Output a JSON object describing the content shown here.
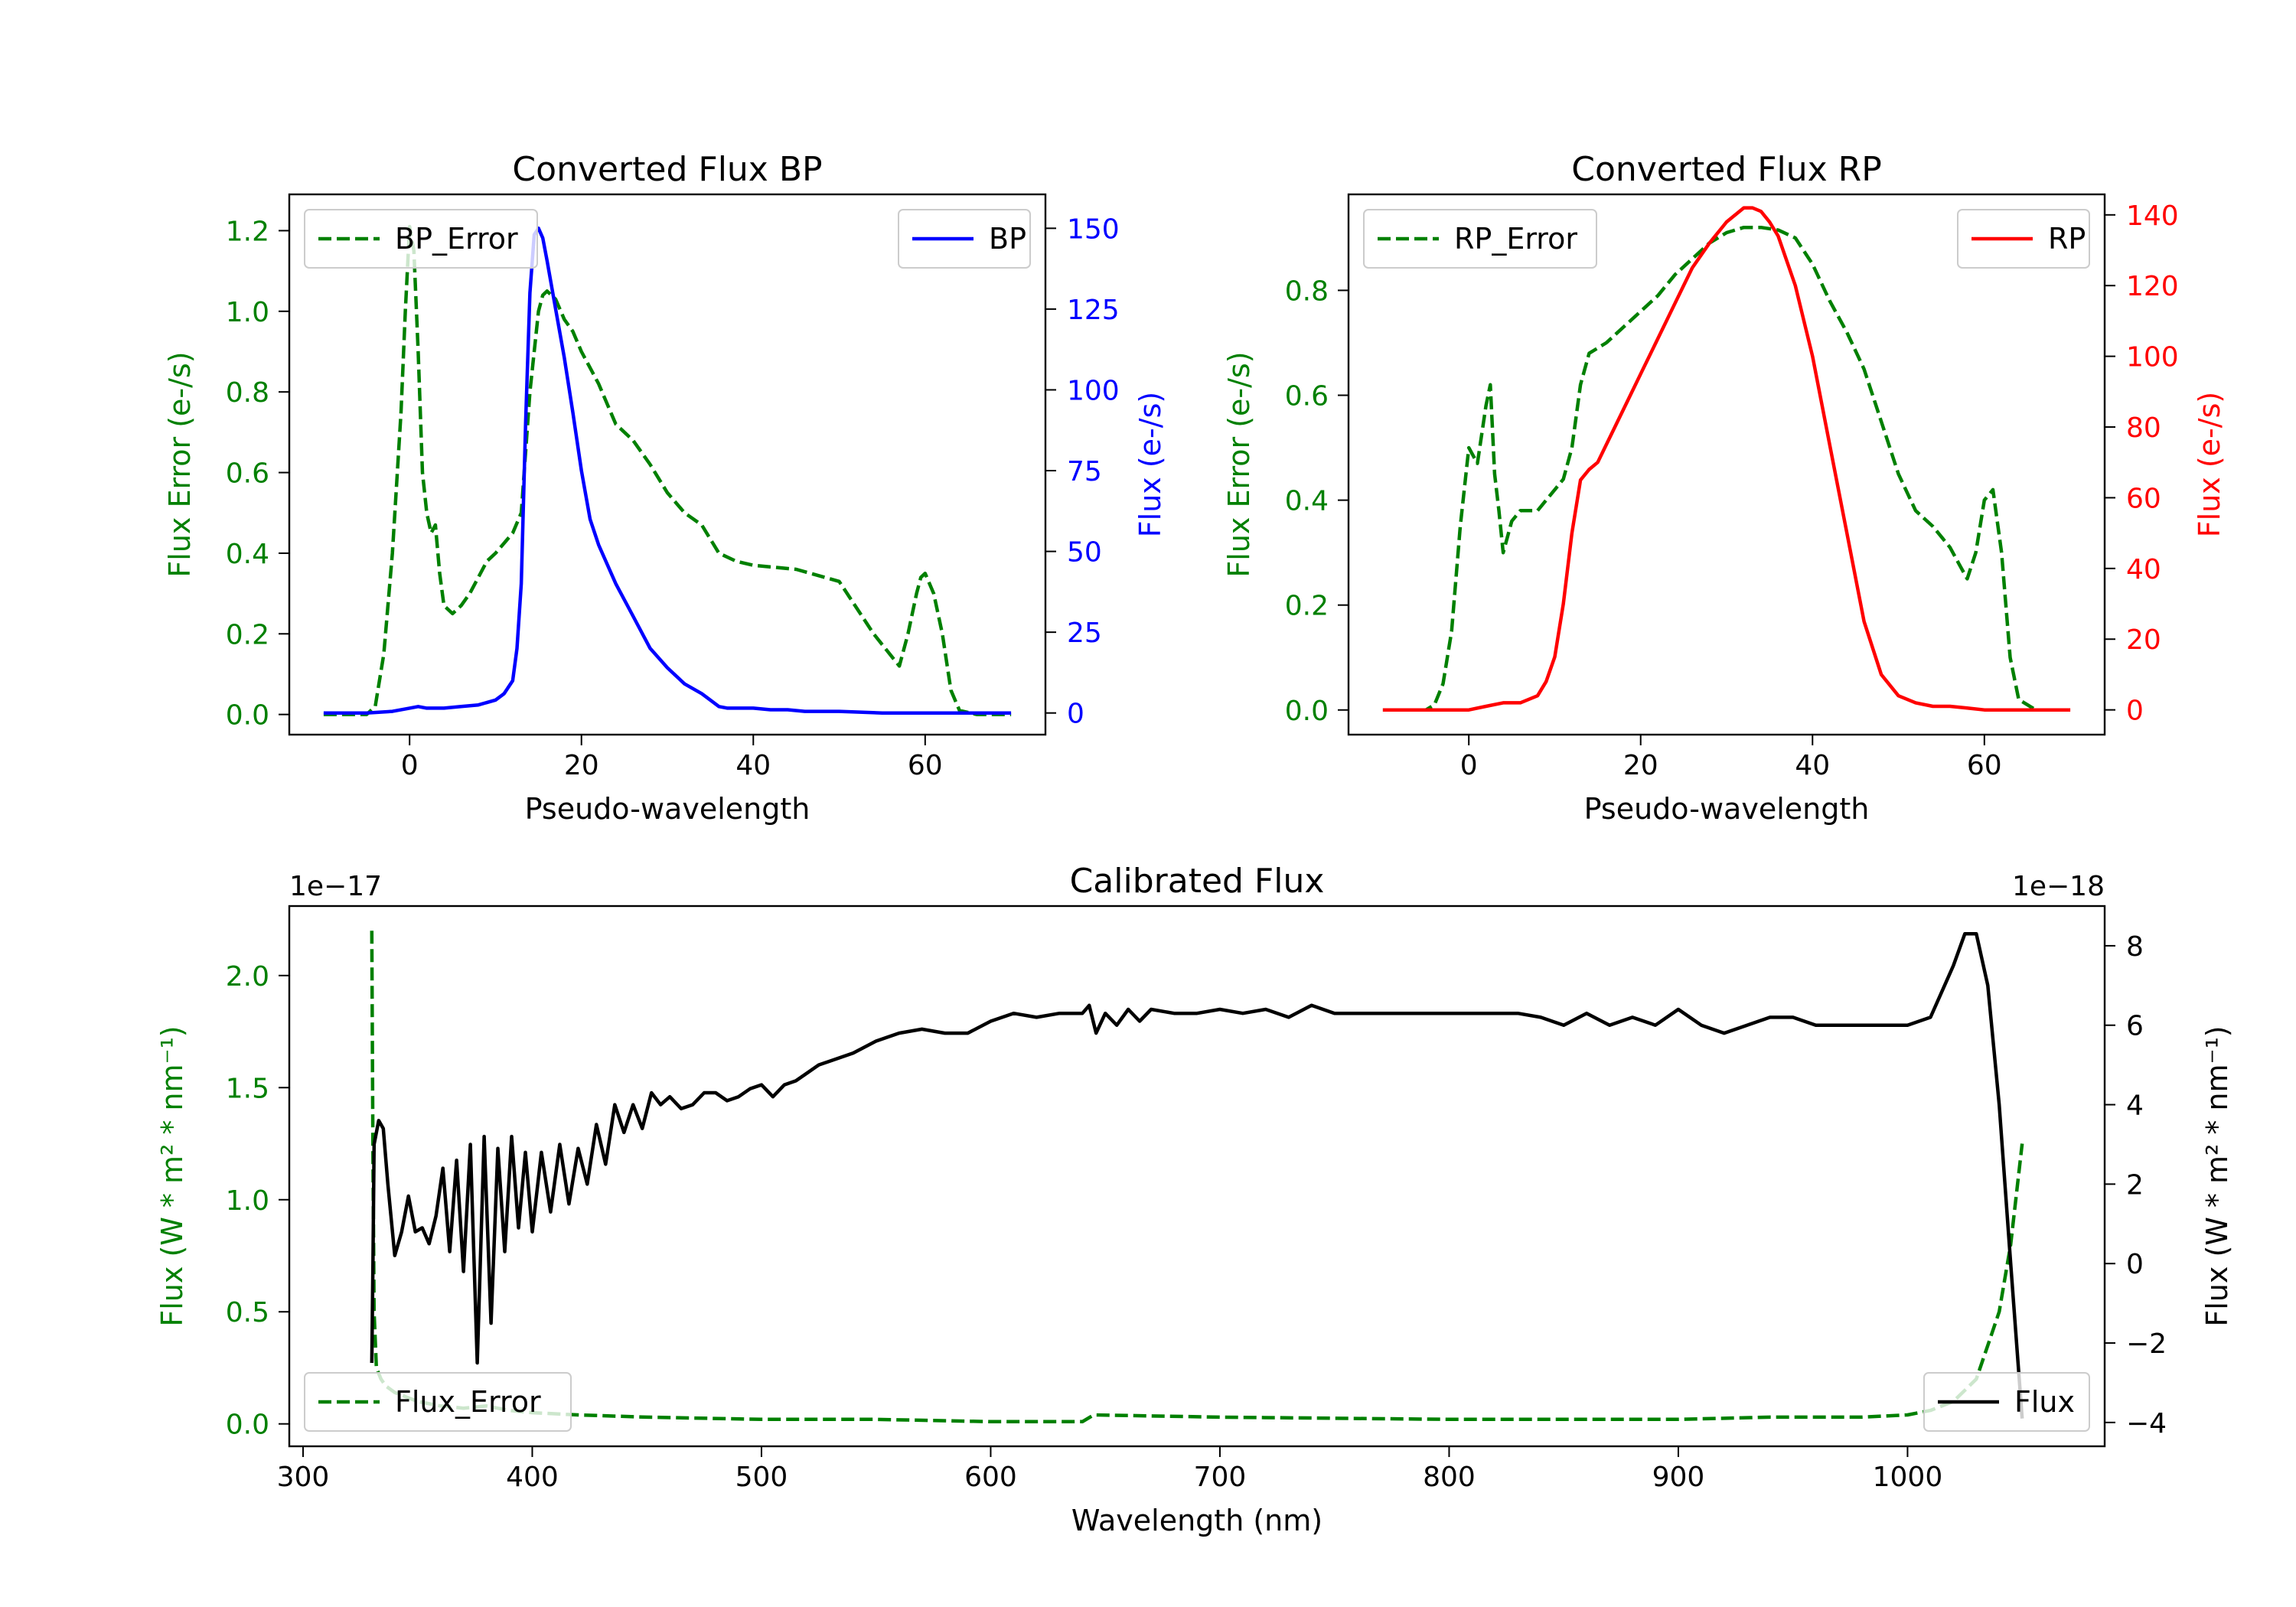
{
  "chart_data": [
    {
      "id": "bp",
      "type": "line",
      "title": "Converted Flux BP",
      "xlabel": "Pseudo-wavelength",
      "ylabel_left": "Flux Error (e-/s)",
      "ylabel_right": "Flux (e-/s)",
      "xlim": [
        -14,
        74
      ],
      "ylim_left": [
        -0.05,
        1.29
      ],
      "ylim_right": [
        -6.7,
        160.5
      ],
      "xticks": [
        0,
        20,
        40,
        60
      ],
      "yticks_left": [
        0.0,
        0.2,
        0.4,
        0.6,
        0.8,
        1.0,
        1.2
      ],
      "yticks_right": [
        0,
        25,
        50,
        75,
        100,
        125,
        150
      ],
      "series": [
        {
          "name": "BP_Error",
          "axis": "left",
          "style": "dashed",
          "color": "#008000",
          "legend_loc": "upper left",
          "x": [
            -10,
            -5,
            -4,
            -3,
            -2,
            -1,
            -0.5,
            0,
            0.5,
            1,
            1.5,
            2,
            2.5,
            3,
            3.5,
            4,
            5,
            6,
            7,
            8,
            9,
            10,
            12,
            13,
            14,
            14.5,
            15,
            15.5,
            16,
            17,
            18,
            19,
            20,
            22,
            24,
            26,
            28,
            30,
            32,
            34,
            36,
            38,
            40,
            45,
            50,
            54,
            57,
            58,
            59,
            59.5,
            60,
            61,
            62,
            63,
            64,
            66,
            70
          ],
          "values": [
            0.0,
            0.0,
            0.02,
            0.15,
            0.4,
            0.75,
            1.0,
            1.21,
            1.15,
            0.9,
            0.6,
            0.5,
            0.45,
            0.47,
            0.35,
            0.27,
            0.25,
            0.27,
            0.3,
            0.34,
            0.38,
            0.4,
            0.45,
            0.5,
            0.8,
            0.9,
            1.0,
            1.04,
            1.05,
            1.03,
            0.98,
            0.95,
            0.9,
            0.82,
            0.72,
            0.68,
            0.62,
            0.55,
            0.5,
            0.47,
            0.4,
            0.38,
            0.37,
            0.36,
            0.33,
            0.2,
            0.12,
            0.2,
            0.3,
            0.34,
            0.35,
            0.3,
            0.2,
            0.06,
            0.01,
            0.0,
            0.0
          ]
        },
        {
          "name": "BP",
          "axis": "right",
          "style": "solid",
          "color": "#0000ff",
          "legend_loc": "upper right",
          "x": [
            -10,
            -5,
            -2,
            0,
            1,
            2,
            4,
            6,
            8,
            10,
            11,
            12,
            12.5,
            13,
            13.5,
            14,
            14.5,
            15,
            15.5,
            16,
            17,
            18,
            19,
            20,
            21,
            22,
            24,
            26,
            28,
            30,
            32,
            34,
            35,
            36,
            37,
            38,
            40,
            42,
            44,
            46,
            50,
            55,
            60,
            65,
            70
          ],
          "values": [
            0,
            0,
            0.5,
            1.5,
            2,
            1.5,
            1.5,
            2,
            2.5,
            4,
            6,
            10,
            20,
            40,
            90,
            130,
            148,
            150,
            147,
            140,
            125,
            110,
            93,
            75,
            60,
            52,
            40,
            30,
            20,
            14,
            9,
            6,
            4,
            2,
            1.5,
            1.5,
            1.5,
            1,
            1,
            0.5,
            0.5,
            0,
            0,
            0,
            0
          ]
        }
      ]
    },
    {
      "id": "rp",
      "type": "line",
      "title": "Converted Flux RP",
      "xlabel": "Pseudo-wavelength",
      "ylabel_left": "Flux Error (e-/s)",
      "ylabel_right": "Flux (e-/s)",
      "xlim": [
        -14,
        74
      ],
      "ylim_left": [
        -0.047,
        0.983
      ],
      "ylim_right": [
        -7.0,
        145.8
      ],
      "xticks": [
        0,
        20,
        40,
        60
      ],
      "yticks_left": [
        0.0,
        0.2,
        0.4,
        0.6,
        0.8
      ],
      "yticks_right": [
        0,
        20,
        40,
        60,
        80,
        100,
        120,
        140
      ],
      "series": [
        {
          "name": "RP_Error",
          "axis": "left",
          "style": "dashed",
          "color": "#008000",
          "legend_loc": "upper left",
          "x": [
            -10,
            -5,
            -4,
            -3,
            -2,
            -1,
            0,
            1,
            2,
            2.5,
            3,
            3.5,
            4,
            5,
            6,
            8,
            10,
            11,
            12,
            13,
            14,
            16,
            18,
            20,
            22,
            24,
            26,
            28,
            30,
            32,
            34,
            36,
            38,
            40,
            42,
            44,
            46,
            48,
            50,
            52,
            54,
            56,
            57,
            58,
            59,
            60,
            61,
            62,
            63,
            64,
            66,
            70
          ],
          "values": [
            0.0,
            0.0,
            0.01,
            0.05,
            0.15,
            0.35,
            0.5,
            0.47,
            0.58,
            0.62,
            0.45,
            0.38,
            0.3,
            0.36,
            0.38,
            0.38,
            0.42,
            0.44,
            0.5,
            0.62,
            0.68,
            0.7,
            0.73,
            0.76,
            0.79,
            0.83,
            0.86,
            0.89,
            0.91,
            0.92,
            0.92,
            0.915,
            0.9,
            0.85,
            0.78,
            0.72,
            0.65,
            0.55,
            0.45,
            0.38,
            0.35,
            0.31,
            0.28,
            0.25,
            0.3,
            0.4,
            0.42,
            0.3,
            0.1,
            0.02,
            0.0,
            0.0
          ]
        },
        {
          "name": "RP",
          "axis": "right",
          "style": "solid",
          "color": "#ff0000",
          "legend_loc": "upper right",
          "x": [
            -10,
            -5,
            0,
            2,
            4,
            6,
            8,
            9,
            10,
            11,
            12,
            13,
            14,
            15,
            16,
            18,
            20,
            22,
            24,
            26,
            28,
            30,
            32,
            33,
            34,
            35,
            36,
            38,
            40,
            42,
            44,
            46,
            48,
            50,
            52,
            54,
            56,
            58,
            60,
            65,
            70
          ],
          "values": [
            0,
            0,
            0,
            1,
            2,
            2,
            4,
            8,
            15,
            30,
            50,
            65,
            68,
            70,
            75,
            85,
            95,
            105,
            115,
            125,
            132,
            138,
            142,
            142,
            141,
            138,
            134,
            120,
            100,
            75,
            50,
            25,
            10,
            4,
            2,
            1,
            1,
            0.5,
            0,
            0,
            0
          ]
        }
      ]
    },
    {
      "id": "cal",
      "type": "line",
      "title": "Calibrated Flux",
      "xlabel": "Wavelength (nm)",
      "ylabel_left": "Flux (W * m² * nm⁻¹)",
      "ylabel_right": "Flux (W * m² * nm⁻¹)",
      "offset_left": "1e−17",
      "offset_right": "1e−18",
      "xlim": [
        294,
        1086
      ],
      "ylim_left": [
        -0.1,
        2.31
      ],
      "ylim_right": [
        -4.6,
        9.0
      ],
      "xticks": [
        300,
        400,
        500,
        600,
        700,
        800,
        900,
        1000
      ],
      "yticks_left": [
        0.0,
        0.5,
        1.0,
        1.5,
        2.0
      ],
      "yticks_right": [
        -4,
        -2,
        0,
        2,
        4,
        6,
        8
      ],
      "series": [
        {
          "name": "Flux",
          "axis": "right",
          "style": "solid",
          "color": "#000000",
          "legend_loc": "lower left",
          "x": [
            330,
            330.5,
            331,
            333,
            335,
            337,
            340,
            343,
            346,
            349,
            352,
            355,
            358,
            361,
            364,
            367,
            370,
            373,
            376,
            379,
            382,
            385,
            388,
            391,
            394,
            397,
            400,
            404,
            408,
            412,
            416,
            420,
            424,
            428,
            432,
            436,
            440,
            444,
            448,
            452,
            456,
            460,
            465,
            470,
            475,
            480,
            485,
            490,
            495,
            500,
            505,
            510,
            515,
            520,
            525,
            530,
            540,
            550,
            560,
            570,
            580,
            590,
            600,
            610,
            620,
            630,
            640,
            643,
            646,
            650,
            655,
            660,
            665,
            670,
            680,
            690,
            700,
            710,
            720,
            730,
            740,
            750,
            760,
            770,
            780,
            790,
            800,
            810,
            820,
            830,
            840,
            850,
            860,
            870,
            880,
            890,
            900,
            910,
            920,
            930,
            940,
            950,
            960,
            970,
            980,
            990,
            1000,
            1010,
            1020,
            1025,
            1030,
            1035,
            1040,
            1045,
            1050
          ],
          "values": [
            -2.5,
            0,
            3,
            3.6,
            3.4,
            2.0,
            0.2,
            0.8,
            1.7,
            0.8,
            0.9,
            0.5,
            1.2,
            2.4,
            0.3,
            2.6,
            -0.2,
            3.0,
            -2.5,
            3.2,
            -1.5,
            2.9,
            0.3,
            3.2,
            0.9,
            2.8,
            0.8,
            2.8,
            1.3,
            3.0,
            1.5,
            2.9,
            2.0,
            3.5,
            2.5,
            4.0,
            3.3,
            4.0,
            3.4,
            4.3,
            4.0,
            4.2,
            3.9,
            4.0,
            4.3,
            4.3,
            4.1,
            4.2,
            4.4,
            4.5,
            4.2,
            4.5,
            4.6,
            4.8,
            5.0,
            5.1,
            5.3,
            5.6,
            5.8,
            5.9,
            5.8,
            5.8,
            6.1,
            6.3,
            6.2,
            6.3,
            6.3,
            6.5,
            5.8,
            6.3,
            6.0,
            6.4,
            6.1,
            6.4,
            6.3,
            6.3,
            6.4,
            6.3,
            6.4,
            6.2,
            6.5,
            6.3,
            6.3,
            6.3,
            6.3,
            6.3,
            6.3,
            6.3,
            6.3,
            6.3,
            6.2,
            6.0,
            6.3,
            6.0,
            6.2,
            6.0,
            6.4,
            6.0,
            5.8,
            6.0,
            6.2,
            6.2,
            6.0,
            6.0,
            6.0,
            6.0,
            6.0,
            6.2,
            7.5,
            8.3,
            8.3,
            7.0,
            4.0,
            0.0,
            -3.9
          ]
        },
        {
          "name": "Flux_Error",
          "axis": "left",
          "style": "dashed",
          "color": "#008000",
          "legend_loc": "lower right",
          "x": [
            330,
            330.5,
            331,
            332,
            334,
            336,
            340,
            350,
            360,
            370,
            380,
            390,
            400,
            420,
            450,
            500,
            550,
            600,
            640,
            645,
            700,
            800,
            900,
            940,
            980,
            1000,
            1010,
            1020,
            1025,
            1030,
            1035,
            1040,
            1045,
            1050
          ],
          "values": [
            2.2,
            1.2,
            0.5,
            0.25,
            0.2,
            0.17,
            0.14,
            0.1,
            0.08,
            0.07,
            0.08,
            0.06,
            0.05,
            0.04,
            0.03,
            0.02,
            0.02,
            0.01,
            0.01,
            0.04,
            0.03,
            0.02,
            0.02,
            0.03,
            0.03,
            0.04,
            0.06,
            0.1,
            0.15,
            0.2,
            0.35,
            0.5,
            0.8,
            1.25
          ]
        }
      ]
    }
  ]
}
